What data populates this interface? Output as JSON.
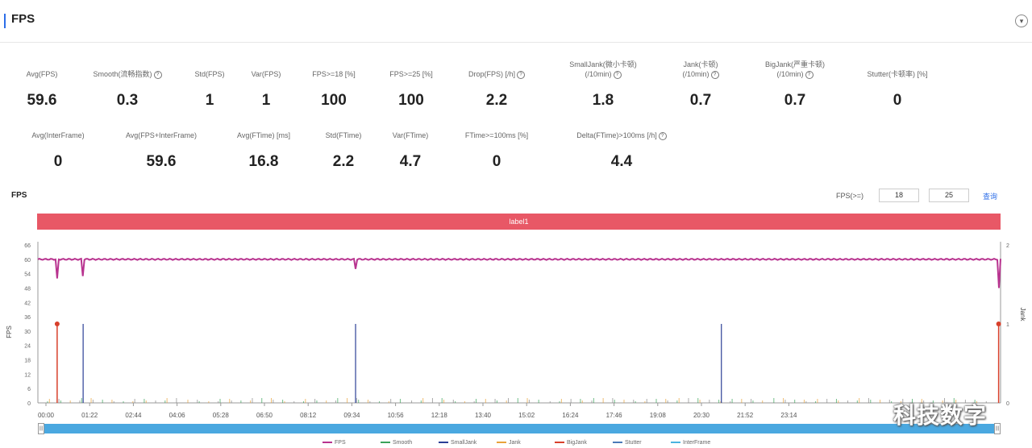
{
  "header": {
    "title": "FPS"
  },
  "metrics_row1": [
    {
      "label": "Avg(FPS)",
      "value": "59.6",
      "info": false
    },
    {
      "label": "Smooth(流畅指数)",
      "value": "0.3",
      "info": true
    },
    {
      "label": "Std(FPS)",
      "value": "1",
      "info": false
    },
    {
      "label": "Var(FPS)",
      "value": "1",
      "info": false
    },
    {
      "label": "FPS>=18 [%]",
      "value": "100",
      "info": false
    },
    {
      "label": "FPS>=25 [%]",
      "value": "100",
      "info": false
    },
    {
      "label": "Drop(FPS) [/h]",
      "value": "2.2",
      "info": true
    },
    {
      "label": "SmallJank(微小卡顿)",
      "label2": "(/10min)",
      "value": "1.8",
      "info": true
    },
    {
      "label": "Jank(卡顿)",
      "label2": "(/10min)",
      "value": "0.7",
      "info": true
    },
    {
      "label": "BigJank(严重卡顿)",
      "label2": "(/10min)",
      "value": "0.7",
      "info": true
    },
    {
      "label": "Stutter(卡顿率) [%]",
      "value": "0",
      "info": false
    }
  ],
  "metrics_row2": [
    {
      "label": "Avg(InterFrame)",
      "value": "0",
      "info": false
    },
    {
      "label": "Avg(FPS+InterFrame)",
      "value": "59.6",
      "info": false
    },
    {
      "label": "Avg(FTime) [ms]",
      "value": "16.8",
      "info": false
    },
    {
      "label": "Std(FTime)",
      "value": "2.2",
      "info": false
    },
    {
      "label": "Var(FTime)",
      "value": "4.7",
      "info": false
    },
    {
      "label": "FTime>=100ms [%]",
      "value": "0",
      "info": false
    },
    {
      "label": "Delta(FTime)>100ms [/h]",
      "value": "4.4",
      "info": true
    }
  ],
  "chart_section": {
    "title": "FPS",
    "threshold_label": "FPS(>=)",
    "threshold1": "18",
    "threshold2": "25",
    "query_label": "查询",
    "band_label": "label1"
  },
  "chart_data": {
    "type": "line",
    "ylabel_left": "FPS",
    "ylabel_right": "Jank",
    "yticks_left": [
      "0",
      "6",
      "12",
      "18",
      "24",
      "30",
      "36",
      "42",
      "48",
      "54",
      "60",
      "66"
    ],
    "ylim_left": [
      0,
      66
    ],
    "yticks_right": [
      "0",
      "1",
      "2"
    ],
    "ylim_right": [
      0,
      2
    ],
    "xticks": [
      "00:00",
      "01:22",
      "02:44",
      "04:06",
      "05:28",
      "06:50",
      "08:12",
      "09:34",
      "10:56",
      "12:18",
      "13:40",
      "15:02",
      "16:24",
      "17:46",
      "19:08",
      "20:30",
      "21:52",
      "23:14"
    ],
    "fps_level": 60,
    "fps_dips": [
      {
        "t": 0.02,
        "fps": 52
      },
      {
        "t": 0.047,
        "fps": 53
      },
      {
        "t": 0.33,
        "fps": 56
      },
      {
        "t": 0.998,
        "fps": 48
      }
    ],
    "small_jank_times": [
      0.047,
      0.33,
      0.71
    ],
    "small_jank_level": 1,
    "big_jank_times": [
      0.02,
      0.998
    ],
    "big_jank_level": 1,
    "legend": [
      "FPS",
      "Smooth",
      "SmallJank",
      "Jank",
      "BigJank",
      "Stutter",
      "InterFrame"
    ],
    "colors": {
      "FPS": "#b8338f",
      "Smooth": "#3aa35a",
      "SmallJank": "#2b3f96",
      "Jank": "#e8a23a",
      "BigJank": "#d8402b",
      "Stutter": "#4a7ab8",
      "InterFrame": "#4ab4e0"
    }
  },
  "scrollbar": {
    "left_handle": "|||",
    "right_handle": "|||"
  },
  "watermark": "科技数字"
}
